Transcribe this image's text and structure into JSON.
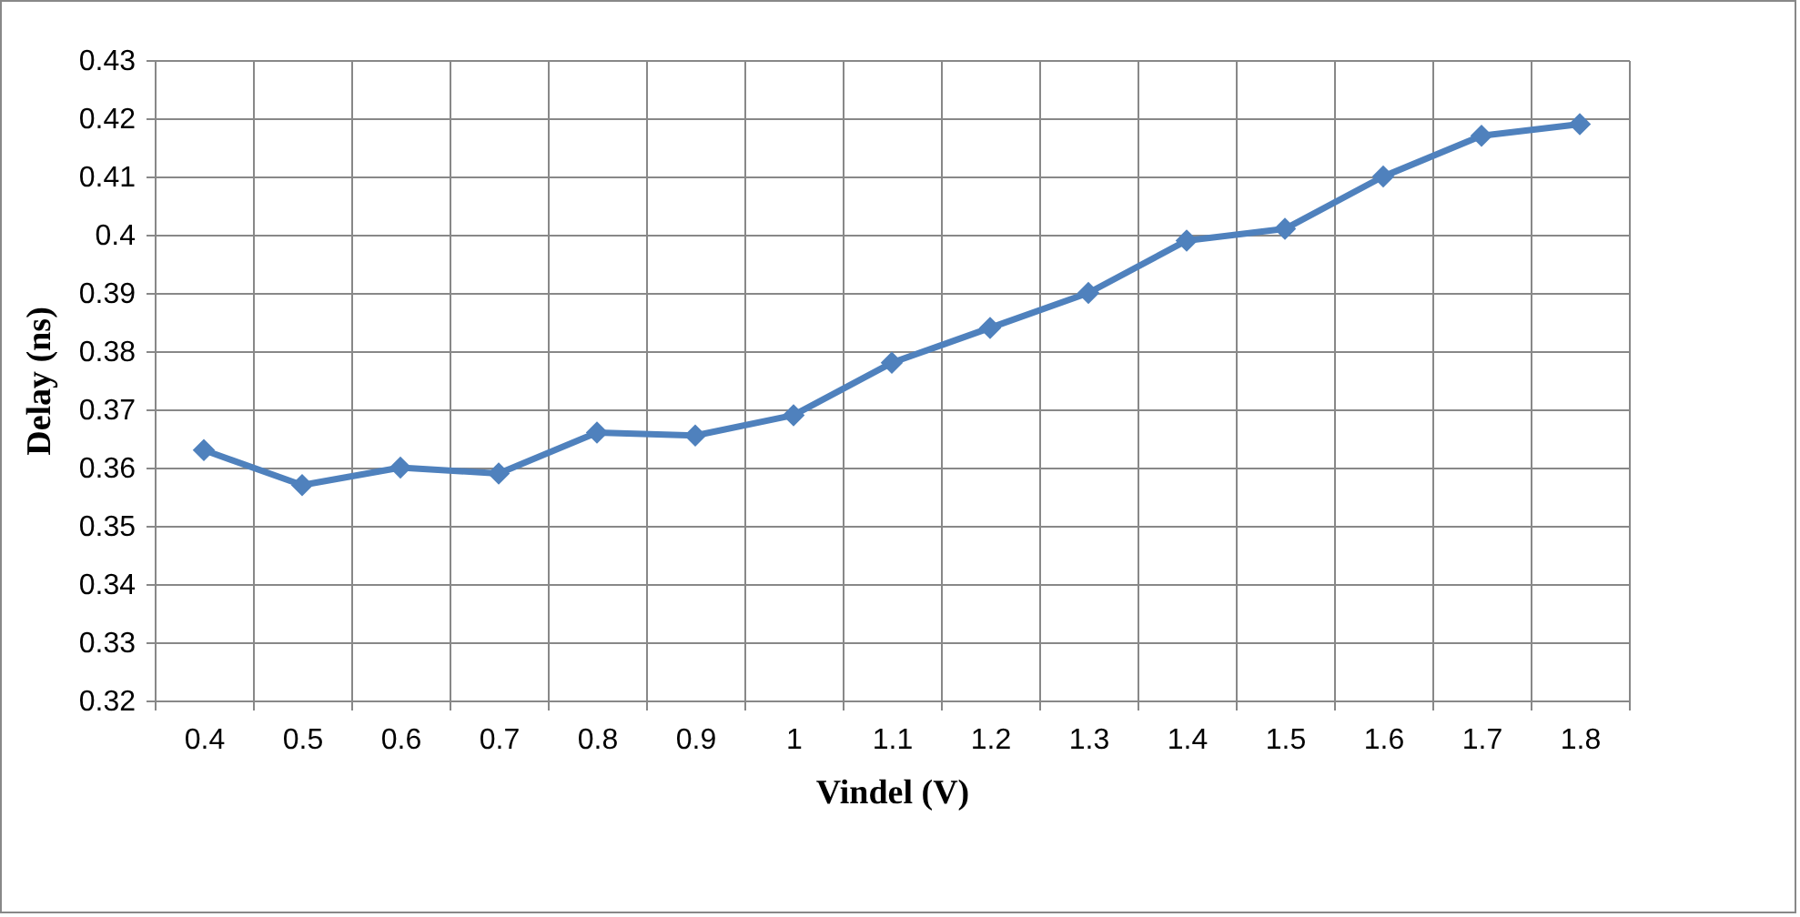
{
  "chart_data": {
    "type": "line",
    "xlabel": "Vindel (V)",
    "ylabel": "Delay (ns)",
    "categories": [
      "0.4",
      "0.5",
      "0.6",
      "0.7",
      "0.8",
      "0.9",
      "1",
      "1.1",
      "1.2",
      "1.3",
      "1.4",
      "1.5",
      "1.6",
      "1.7",
      "1.8"
    ],
    "series": [
      {
        "color": "#4f81bd",
        "values": [
          0.363,
          0.357,
          0.36,
          0.359,
          0.366,
          0.3655,
          0.369,
          0.378,
          0.384,
          0.39,
          0.399,
          0.401,
          0.41,
          0.417,
          0.419
        ]
      }
    ],
    "ylim": [
      0.32,
      0.43
    ],
    "yticks": [
      0.32,
      0.33,
      0.34,
      0.35,
      0.36,
      0.37,
      0.38,
      0.39,
      0.4,
      0.41,
      0.42,
      0.43
    ],
    "grid": true,
    "marker": "diamond",
    "legend": false
  }
}
